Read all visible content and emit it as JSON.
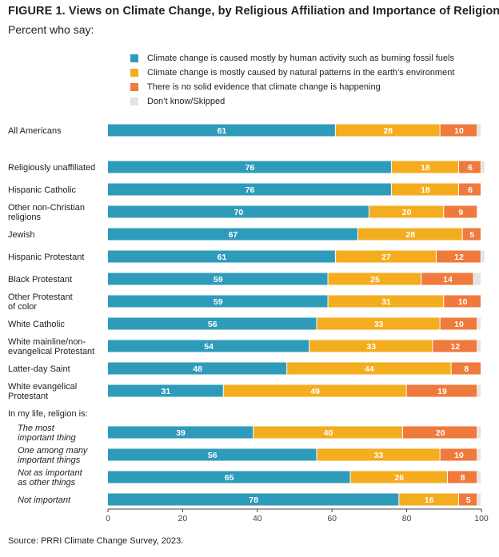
{
  "title": "FIGURE 1.  Views on Climate Change, by Religious Affiliation and Importance of Religion",
  "subtitle": "Percent who say:",
  "source": "Source: PRRI Climate Change Survey, 2023.",
  "section_label": "In my life, religion is:",
  "colors": {
    "human": "#2f9bbb",
    "natural": "#f4ad1f",
    "no_evidence": "#ef7a3c",
    "dont_know": "#e2e3e4",
    "bar_text": "#ffffff",
    "axis": "#444444"
  },
  "chart_data": {
    "type": "bar",
    "orientation": "horizontal",
    "stacked": true,
    "xlim": [
      0,
      100
    ],
    "xticks": [
      0,
      20,
      40,
      60,
      80,
      100
    ],
    "legend_position": "top",
    "series": [
      {
        "name": "Climate change is caused mostly by human activity such as burning fossil fuels",
        "color_key": "human"
      },
      {
        "name": "Climate change is mostly caused by natural patterns in the earth’s environment",
        "color_key": "natural"
      },
      {
        "name": "There is no solid evidence that climate change is happening",
        "color_key": "no_evidence"
      },
      {
        "name": "Don’t know/Skipped",
        "color_key": "dont_know"
      }
    ],
    "categories": [
      {
        "label": "All Americans",
        "italic": false,
        "values": [
          61,
          28,
          10,
          1
        ]
      },
      {
        "label": "Religiously unaffiliated",
        "italic": false,
        "values": [
          76,
          18,
          6,
          1
        ]
      },
      {
        "label": "Hispanic Catholic",
        "italic": false,
        "values": [
          76,
          18,
          6,
          0
        ]
      },
      {
        "label": "Other non-Christian religions",
        "italic": false,
        "values": [
          70,
          20,
          9,
          0
        ]
      },
      {
        "label": "Jewish",
        "italic": false,
        "values": [
          67,
          28,
          5,
          0
        ]
      },
      {
        "label": "Hispanic Protestant",
        "italic": false,
        "values": [
          61,
          27,
          12,
          1
        ]
      },
      {
        "label": "Black Protestant",
        "italic": false,
        "values": [
          59,
          25,
          14,
          2
        ]
      },
      {
        "label": "Other Protestant of color",
        "italic": false,
        "values": [
          59,
          31,
          10,
          0
        ]
      },
      {
        "label": "White Catholic",
        "italic": false,
        "values": [
          56,
          33,
          10,
          1
        ]
      },
      {
        "label": "White mainline/non-evangelical Protestant",
        "italic": false,
        "values": [
          54,
          33,
          12,
          1
        ]
      },
      {
        "label": "Latter-day Saint",
        "italic": false,
        "values": [
          48,
          44,
          8,
          0
        ]
      },
      {
        "label": "White evangelical Protestant",
        "italic": false,
        "values": [
          31,
          49,
          19,
          1
        ]
      },
      {
        "label": "The most important thing",
        "italic": true,
        "values": [
          39,
          40,
          20,
          1
        ]
      },
      {
        "label": "One among many important things",
        "italic": true,
        "values": [
          56,
          33,
          10,
          1
        ]
      },
      {
        "label": "Not as important as other things",
        "italic": true,
        "values": [
          65,
          26,
          8,
          1
        ]
      },
      {
        "label": "Not important",
        "italic": true,
        "values": [
          78,
          16,
          5,
          1
        ]
      }
    ]
  }
}
